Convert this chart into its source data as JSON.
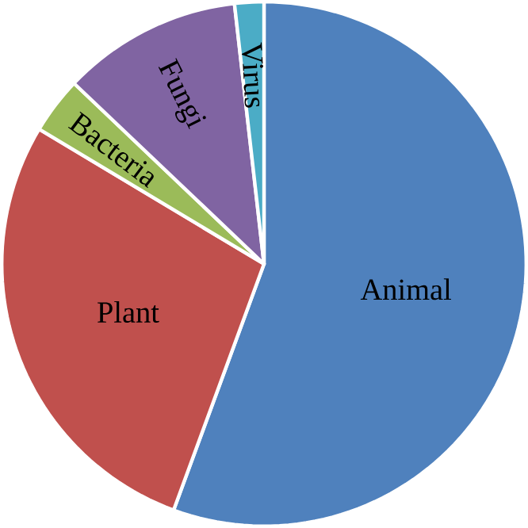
{
  "chart_data": {
    "type": "pie",
    "categories": [
      "Animal",
      "Plant",
      "Bacteria",
      "Fungi",
      "Virus"
    ],
    "values": [
      55.6,
      28.0,
      3.5,
      11.1,
      1.8
    ],
    "colors": [
      "#4f81bd",
      "#c0504d",
      "#9bbb59",
      "#8064a2",
      "#4bacc6"
    ]
  }
}
